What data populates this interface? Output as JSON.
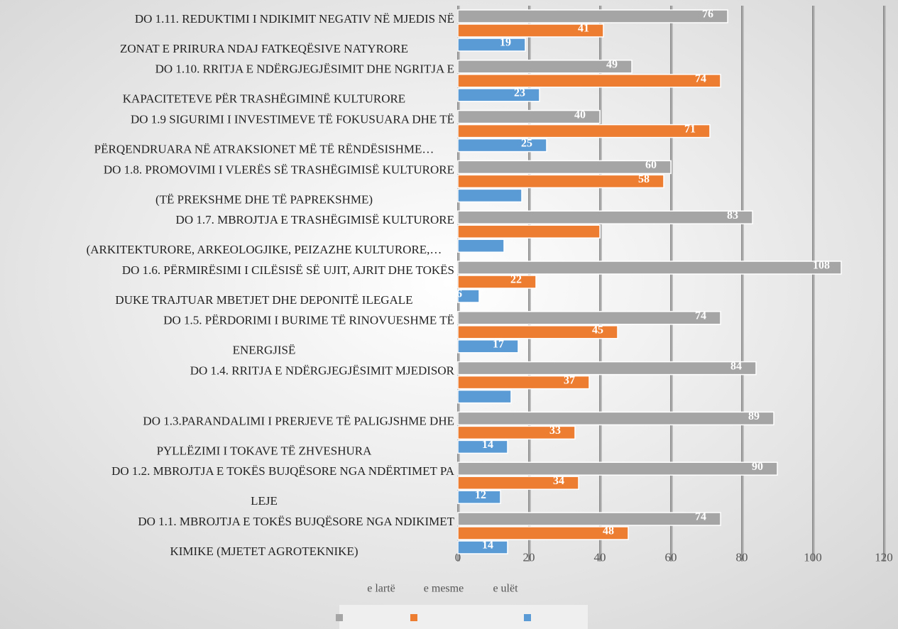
{
  "chart_data": {
    "type": "hbar",
    "categories": [
      [
        "DO 1.11. REDUKTIMI I NDIKIMIT NEGATIV NË MJEDIS NË",
        "ZONAT E PRIRURA NDAJ FATKEQËSIVE NATYRORE"
      ],
      [
        "DO 1.10. RRITJA E NDËRGJEGJËSIMIT DHE NGRITJA E",
        "KAPACITETEVE PËR TRASHËGIMINË KULTURORE"
      ],
      [
        "DO 1.9 SIGURIMI I INVESTIMEVE TË FOKUSUARA DHE TË",
        "PËRQENDRUARA NË ATRAKSIONET MË TË RËNDËSISHME…"
      ],
      [
        "DO 1.8. PROMOVIMI I VLERËS SË TRASHËGIMISË KULTURORE",
        "(TË PREKSHME DHE TË PAPREKSHME)"
      ],
      [
        "DO 1.7. MBROJTJA E TRASHËGIMISË KULTURORE",
        "(ARKITEKTURORE, ARKEOLOGJIKE, PEIZAZHE KULTURORE,…"
      ],
      [
        "DO 1.6. PËRMIRËSIMI I CILËSISË SË UJIT, AJRIT DHE TOKËS",
        "DUKE TRAJTUAR MBETJET DHE DEPONITË ILEGALE"
      ],
      [
        "DO 1.5. PËRDORIMI I BURIME TË RINOVUESHME TË",
        "ENERGJISË"
      ],
      [
        "DO 1.4. RRITJA E NDËRGJEGJËSIMIT MJEDISOR",
        null
      ],
      [
        "DO 1.3.PARANDALIMI I PRERJEVE TË PALIGJSHME DHE",
        "PYLLËZIMI I TOKAVE TË ZHVESHURA"
      ],
      [
        "DO 1.2. MBROJTJA E TOKËS BUJQËSORE NGA NDËRTIMET PA",
        "LEJE"
      ],
      [
        "DO 1.1. MBROJTJA E TOKËS BUJQËSORE NGA NDIKIMET",
        "KIMIKE (MJETET AGROTEKNIKE)"
      ]
    ],
    "series": [
      {
        "name": "e lartë",
        "color": "#a5a5a5",
        "values": [
          76,
          49,
          40,
          60,
          83,
          108,
          74,
          84,
          89,
          90,
          74
        ],
        "value_labels": [
          "76",
          "49",
          "40",
          "60",
          "83",
          "108",
          "74",
          "84",
          "89",
          "90",
          "74"
        ]
      },
      {
        "name": "e mesme",
        "color": "#ed7d31",
        "values": [
          41,
          74,
          71,
          58,
          40,
          22,
          45,
          37,
          33,
          34,
          48
        ],
        "value_labels": [
          "41",
          "74",
          "71",
          "58",
          null,
          "22",
          "45",
          "37",
          "33",
          "34",
          "48"
        ]
      },
      {
        "name": "e ulët",
        "color": "#5b9bd5",
        "values": [
          19,
          23,
          25,
          18,
          13,
          6,
          17,
          15,
          14,
          12,
          14
        ],
        "value_labels": [
          "19",
          "23",
          "25",
          null,
          null,
          "6",
          "17",
          null,
          "14",
          "12",
          "14"
        ]
      }
    ],
    "xlim": [
      0,
      120
    ],
    "xticks": [
      0,
      20,
      40,
      60,
      80,
      100,
      120
    ],
    "grid": true,
    "legend": "bottom"
  }
}
